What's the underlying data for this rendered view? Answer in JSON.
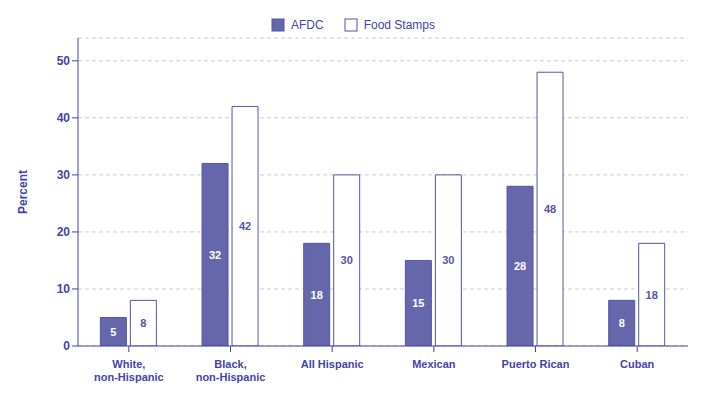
{
  "chart_data": {
    "type": "bar",
    "categories": [
      "White,\nnon-Hispanic",
      "Black,\nnon-Hispanic",
      "All Hispanic",
      "Mexican",
      "Puerto Rican",
      "Cuban"
    ],
    "series": [
      {
        "name": "AFDC",
        "color": "#6666aa",
        "values": [
          5,
          32,
          18,
          15,
          28,
          8
        ]
      },
      {
        "name": "Food Stamps",
        "color": "#ffffff",
        "values": [
          8,
          42,
          30,
          30,
          48,
          18
        ]
      }
    ],
    "ylabel": "Percent",
    "ylim": [
      0,
      54
    ],
    "yticks": [
      0,
      10,
      20,
      30,
      40,
      50
    ],
    "grid": true,
    "legend": "top",
    "data_labels": true
  }
}
